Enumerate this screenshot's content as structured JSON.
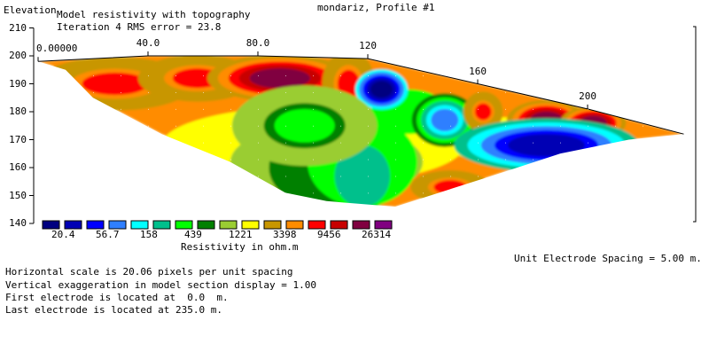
{
  "header": {
    "profile_title": "mondariz, Profile #1",
    "subtitle": "Model resistivity with topography",
    "iteration": "Iteration 4 RMS error = 23.8",
    "y_axis_label": "Elevation"
  },
  "legend": {
    "caption": "Resistivity in ohm.m",
    "labels": [
      "20.4",
      "56.7",
      "158",
      "439",
      "1221",
      "3398",
      "9456",
      "26314"
    ],
    "colors": [
      "#000080",
      "#0000b4",
      "#0000ff",
      "#2f7fff",
      "#00ffff",
      "#00c08c",
      "#00ff00",
      "#008000",
      "#9acd32",
      "#ffff00",
      "#c89600",
      "#ff8c00",
      "#ff0000",
      "#c80000",
      "#800040",
      "#800080"
    ]
  },
  "footer": {
    "electrode_spacing": "Unit Electrode Spacing = 5.00 m.",
    "lines": [
      "Horizontal scale is 20.06 pixels per unit spacing",
      "Vertical exaggeration in model section display = 1.00",
      "First electrode is located at  0.0  m.",
      "Last electrode is located at 235.0 m."
    ]
  },
  "chart_data": {
    "type": "heatmap",
    "title": "Model resistivity with topography",
    "ylabel": "Elevation",
    "x_ticks": [
      "0.00000",
      "40.0",
      "80.0",
      "120",
      "160",
      "200"
    ],
    "x_tick_values": [
      0,
      40,
      80,
      120,
      160,
      200
    ],
    "y_ticks": [
      "210",
      "200",
      "190",
      "180",
      "170",
      "160",
      "150",
      "140"
    ],
    "y_tick_values": [
      210,
      200,
      190,
      180,
      170,
      160,
      150,
      140
    ],
    "ylim": [
      140,
      210
    ],
    "xlim": [
      0,
      235
    ],
    "topography": [
      [
        0,
        198
      ],
      [
        40,
        200
      ],
      [
        80,
        200
      ],
      [
        120,
        199
      ],
      [
        160,
        190
      ],
      [
        200,
        181
      ],
      [
        235,
        172
      ]
    ],
    "bottom_boundary": [
      [
        10,
        195
      ],
      [
        20,
        185
      ],
      [
        45,
        172
      ],
      [
        70,
        162
      ],
      [
        90,
        151
      ],
      [
        105,
        148
      ],
      [
        130,
        146
      ],
      [
        165,
        157
      ],
      [
        190,
        165
      ],
      [
        215,
        170
      ],
      [
        235,
        172
      ]
    ],
    "anomalies": [
      {
        "x": 28,
        "y": 190,
        "rx": 12,
        "ry": 4,
        "level": 12
      },
      {
        "x": 58,
        "y": 192,
        "rx": 9,
        "ry": 3.5,
        "level": 12
      },
      {
        "x": 88,
        "y": 192,
        "rx": 11,
        "ry": 3.5,
        "level": 14
      },
      {
        "x": 113,
        "y": 190,
        "rx": 4,
        "ry": 5,
        "level": 12
      },
      {
        "x": 125,
        "y": 188,
        "rx": 4,
        "ry": 3,
        "level": 0
      },
      {
        "x": 97,
        "y": 175,
        "rx": 11,
        "ry": 6,
        "level": 6
      },
      {
        "x": 148,
        "y": 177,
        "rx": 5,
        "ry": 4,
        "level": 3
      },
      {
        "x": 162,
        "y": 180,
        "rx": 3,
        "ry": 3,
        "level": 12
      },
      {
        "x": 185,
        "y": 177,
        "rx": 6,
        "ry": 3,
        "level": 14
      },
      {
        "x": 202,
        "y": 176,
        "rx": 5,
        "ry": 2.5,
        "level": 14
      },
      {
        "x": 185,
        "y": 168,
        "rx": 14,
        "ry": 4,
        "level": 1
      },
      {
        "x": 150,
        "y": 153,
        "rx": 6,
        "ry": 2.5,
        "level": 12
      }
    ]
  }
}
